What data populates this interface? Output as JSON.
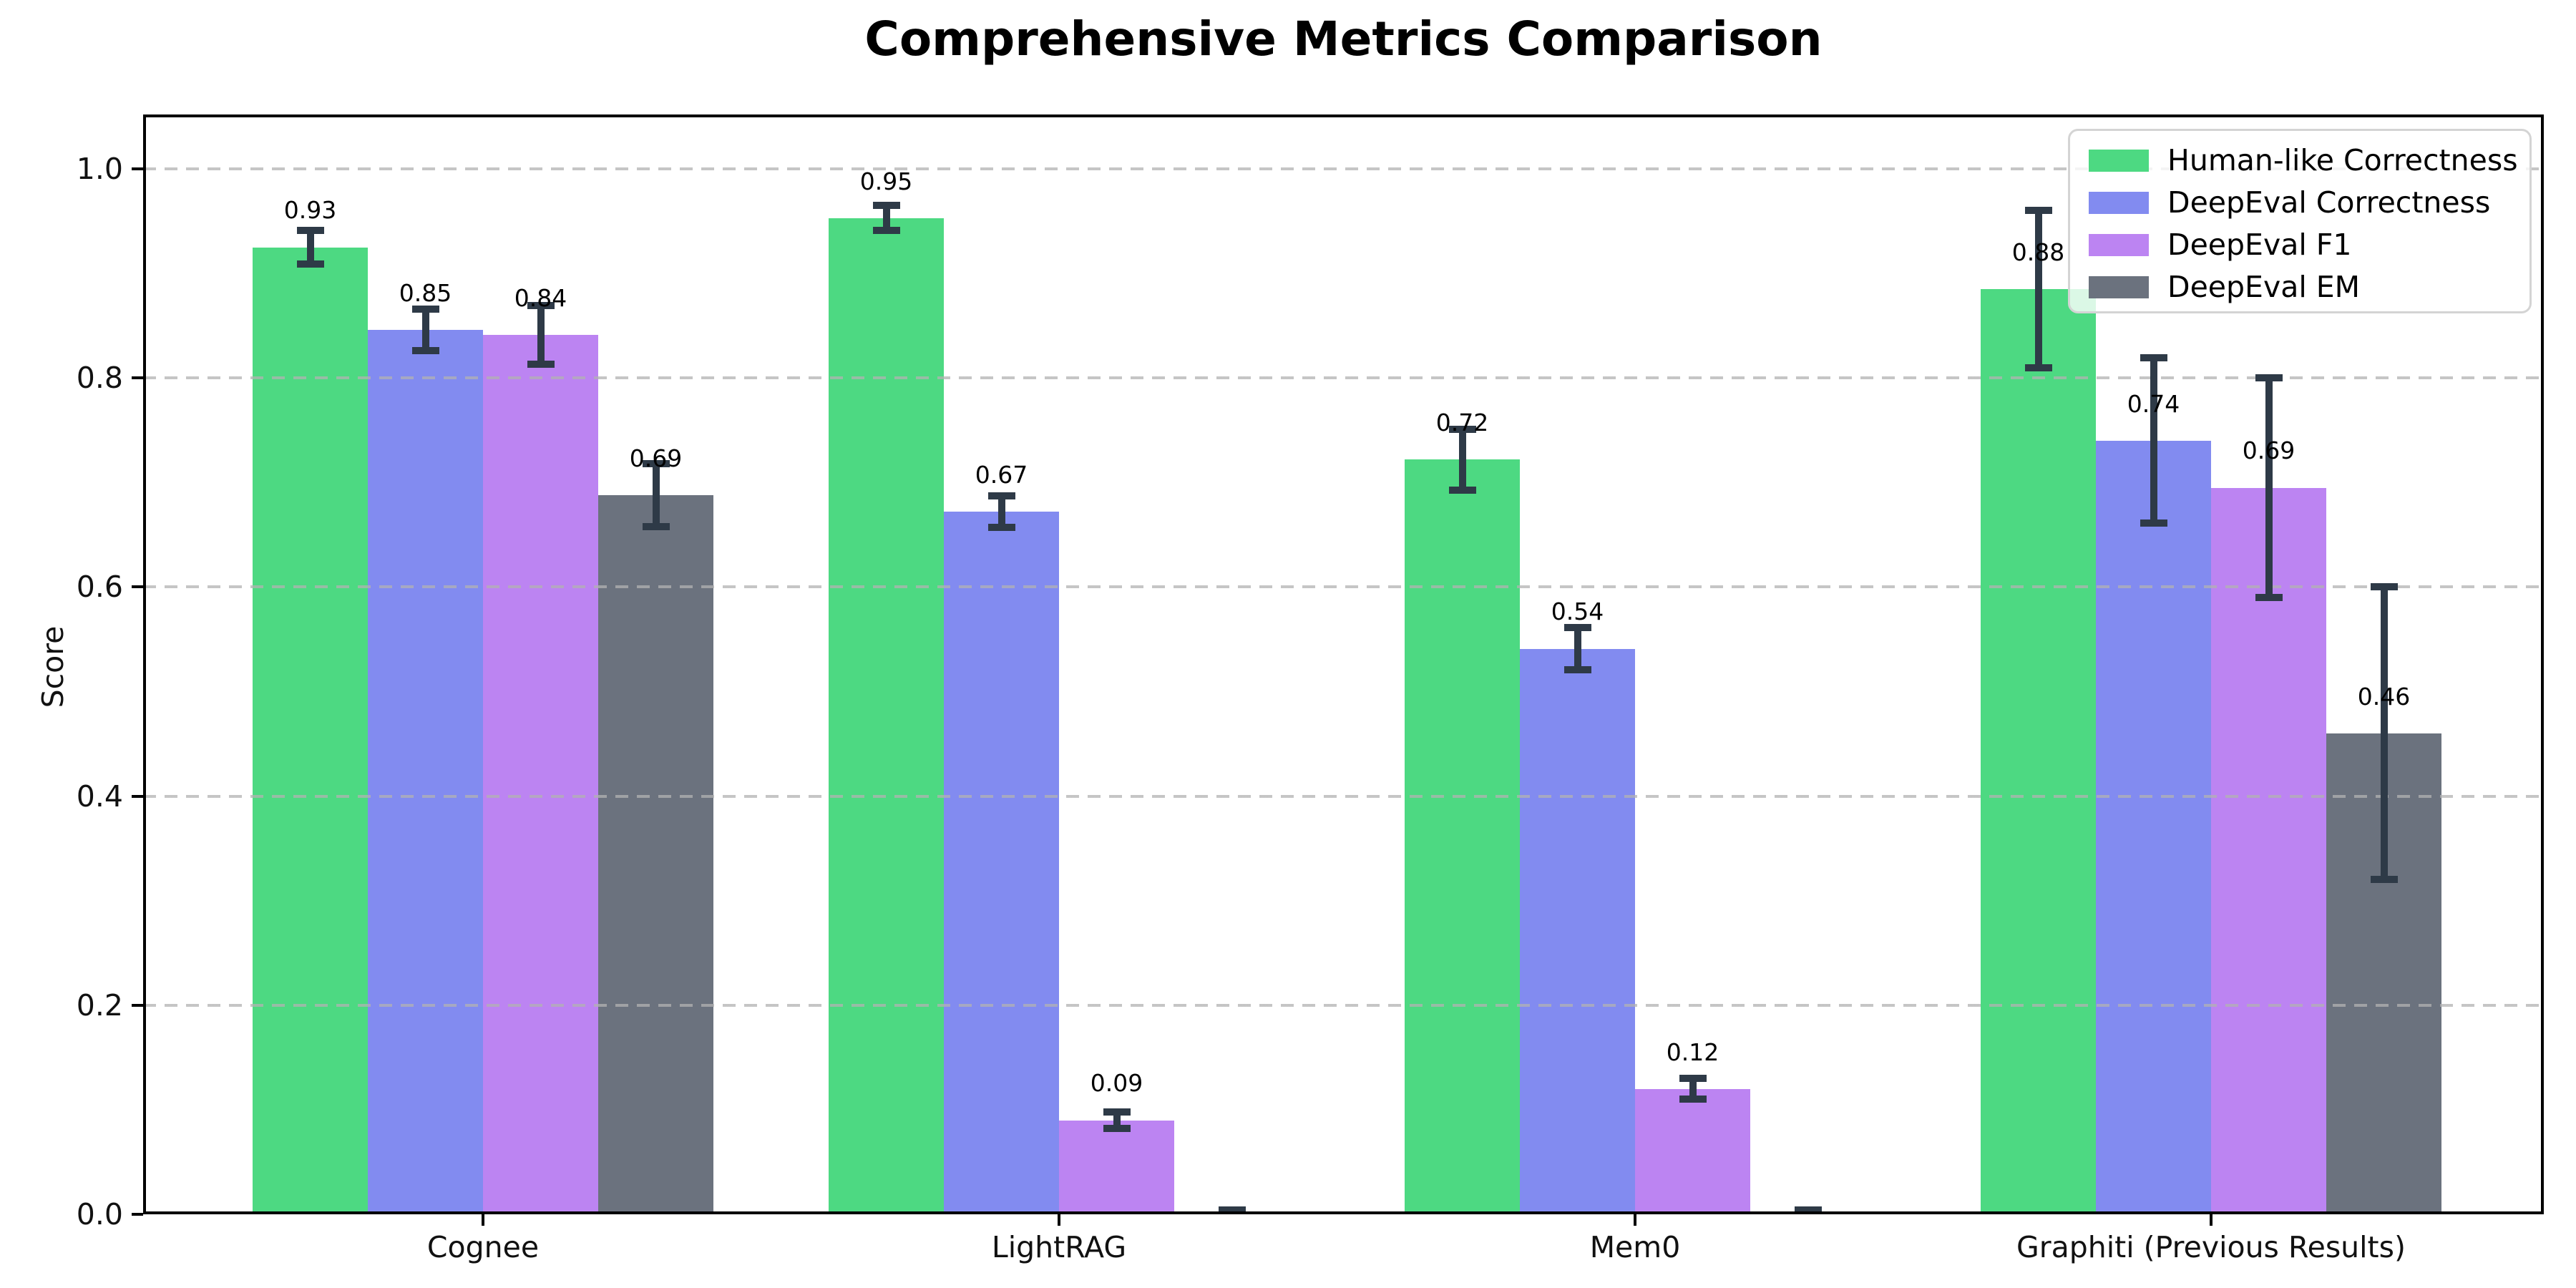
{
  "title": "Comprehensive Metrics Comparison",
  "ylabel": "Score",
  "chart_data": {
    "type": "bar",
    "categories": [
      "Cognee",
      "LightRAG",
      "Mem0",
      "Graphiti (Previous Results)"
    ],
    "series": [
      {
        "name": "Human-like Correctness",
        "color": "#4dd982",
        "values": [
          0.925,
          0.953,
          0.722,
          0.885
        ],
        "errors": [
          0.016,
          0.012,
          0.029,
          0.075
        ],
        "labels": [
          "0.93",
          "0.95",
          "0.72",
          "0.88"
        ]
      },
      {
        "name": "DeepEval Correctness",
        "color": "#828bf0",
        "values": [
          0.846,
          0.672,
          0.541,
          0.74
        ],
        "errors": [
          0.02,
          0.015,
          0.02,
          0.079
        ],
        "labels": [
          "0.85",
          "0.67",
          "0.54",
          "0.74"
        ]
      },
      {
        "name": "DeepEval F1",
        "color": "#bc84f2",
        "values": [
          0.841,
          0.09,
          0.12,
          0.695
        ],
        "errors": [
          0.028,
          0.008,
          0.01,
          0.105
        ],
        "labels": [
          "0.84",
          "0.09",
          "0.12",
          "0.69"
        ]
      },
      {
        "name": "DeepEval EM",
        "color": "#6b727e",
        "values": [
          0.688,
          0.0,
          0.0,
          0.46
        ],
        "errors": [
          0.03,
          0.004,
          0.004,
          0.14
        ],
        "labels": [
          "0.69",
          "",
          "",
          "0.46"
        ]
      }
    ],
    "ylim": [
      0,
      1.052
    ],
    "yticks": [
      "0.0",
      "0.2",
      "0.4",
      "0.6",
      "0.8",
      "1.0"
    ],
    "grid": "horizontal-dashed",
    "legend_position": "upper-right",
    "error_bar_color": "#2e3a47",
    "axis_color": "#000000",
    "background_color": "#ffffff"
  }
}
